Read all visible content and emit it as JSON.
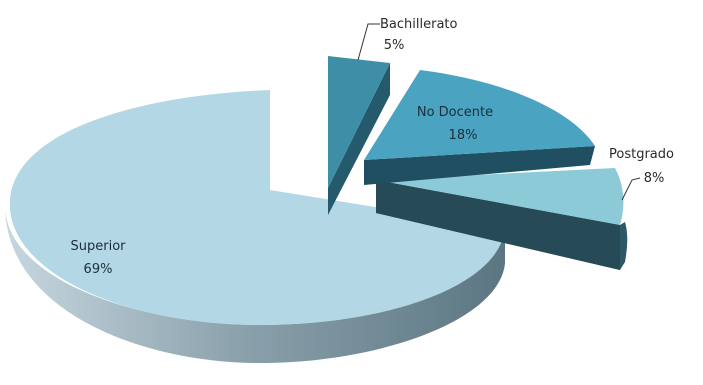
{
  "chart_data": {
    "type": "pie",
    "style": "3d-exploded",
    "title": "",
    "slices": [
      {
        "label": "Bachillerato",
        "value": 5,
        "value_label": "5%",
        "top_color": "#3d8ea6",
        "side_color": "#255a6c"
      },
      {
        "label": "No Docente",
        "value": 18,
        "value_label": "18%",
        "top_color": "#4aa3c0",
        "side_color": "#1f4f60"
      },
      {
        "label": "Postgrado",
        "value": 8,
        "value_label": "8%",
        "top_color": "#8ccad8",
        "side_color": "#2f5866"
      },
      {
        "label": "Superior",
        "value": 69,
        "value_label": "69%",
        "top_color": "#b3d7e4",
        "side_color": "#7f9fab"
      }
    ]
  }
}
